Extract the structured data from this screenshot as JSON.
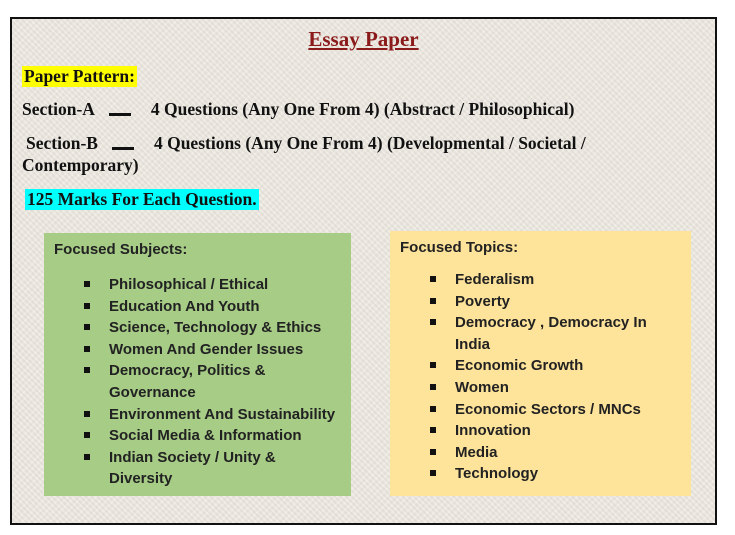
{
  "title": "Essay Paper",
  "paper_pattern_label": "Paper Pattern:",
  "section_a": {
    "label": "Section-A",
    "text": "4 Questions   (Any One From  4)  (Abstract / Philosophical)"
  },
  "section_b": {
    "label": "Section-B",
    "text": "4 Questions    (Any One From  4)    (Developmental / Societal /",
    "text_cont": "Contemporary)"
  },
  "marks_note": "125 Marks For Each Question.",
  "focused_subjects": {
    "heading": "Focused  Subjects:",
    "items": [
      "Philosophical / Ethical",
      "Education And  Youth",
      "Science,  Technology  & Ethics",
      "Women And Gender Issues",
      "Democracy, Politics & Governance",
      "Environment And  Sustainability",
      "Social Media & Information",
      "Indian Society /  Unity & Diversity"
    ]
  },
  "focused_topics": {
    "heading": "Focused Topics:",
    "items": [
      "Federalism",
      "Poverty",
      "Democracy , Democracy In India",
      "Economic Growth",
      "Women",
      "Economic Sectors / MNCs",
      "Innovation",
      "Media",
      "Technology"
    ]
  },
  "colors": {
    "title": "#8b1a1a",
    "highlight_yellow": "#ffff00",
    "highlight_cyan": "#00ffff",
    "subjects_box": "#a6cc86",
    "topics_box": "#fee39a",
    "background": "#ece7df"
  }
}
